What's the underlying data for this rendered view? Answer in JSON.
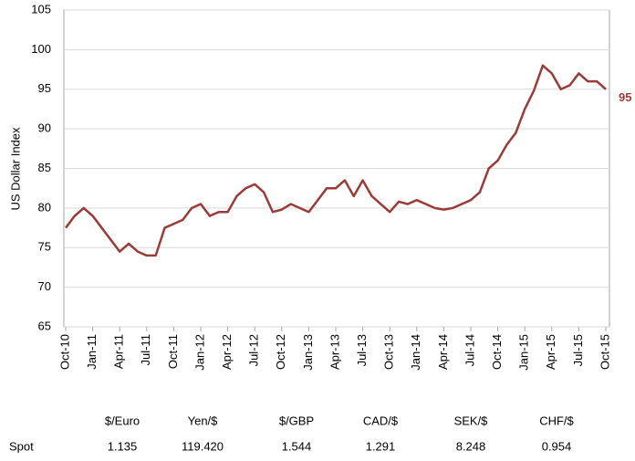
{
  "chart_data": {
    "type": "line",
    "y_label": "US Dollar Index",
    "x": [
      "Oct-10",
      "Nov-10",
      "Dec-10",
      "Jan-11",
      "Feb-11",
      "Mar-11",
      "Apr-11",
      "May-11",
      "Jun-11",
      "Jul-11",
      "Aug-11",
      "Sep-11",
      "Oct-11",
      "Nov-11",
      "Dec-11",
      "Jan-12",
      "Feb-12",
      "Mar-12",
      "Apr-12",
      "May-12",
      "Jun-12",
      "Jul-12",
      "Aug-12",
      "Sep-12",
      "Oct-12",
      "Nov-12",
      "Dec-12",
      "Jan-13",
      "Feb-13",
      "Mar-13",
      "Apr-13",
      "May-13",
      "Jun-13",
      "Jul-13",
      "Aug-13",
      "Sep-13",
      "Oct-13",
      "Nov-13",
      "Dec-13",
      "Jan-14",
      "Feb-14",
      "Mar-14",
      "Apr-14",
      "May-14",
      "Jun-14",
      "Jul-14",
      "Aug-14",
      "Sep-14",
      "Oct-14",
      "Nov-14",
      "Dec-14",
      "Jan-15",
      "Feb-15",
      "Mar-15",
      "Apr-15",
      "May-15",
      "Jun-15",
      "Jul-15",
      "Aug-15",
      "Sep-15",
      "Oct-15"
    ],
    "series": [
      {
        "color": "#9b3b38",
        "values": [
          77.5,
          79,
          80,
          79,
          77.5,
          76,
          74.5,
          75.5,
          74.5,
          74,
          74,
          77.5,
          78,
          78.5,
          80,
          80.5,
          79,
          79.5,
          79.5,
          81.5,
          82.5,
          83,
          82,
          79.5,
          79.8,
          80.5,
          80,
          79.5,
          81,
          82.5,
          82.5,
          83.5,
          81.5,
          83.5,
          81.5,
          80.5,
          79.5,
          80.8,
          80.5,
          81,
          80.5,
          80,
          79.8,
          80,
          80.5,
          81,
          82,
          85,
          86,
          88,
          89.5,
          92.5,
          94.8,
          98,
          97,
          95,
          95.5,
          97,
          96,
          96,
          95
        ]
      }
    ],
    "end_label": "95",
    "xticks": [
      "Oct-10",
      "Jan-11",
      "Apr-11",
      "Jul-11",
      "Oct-11",
      "Jan-12",
      "Apr-12",
      "Jul-12",
      "Oct-12",
      "Jan-13",
      "Apr-13",
      "Jul-13",
      "Oct-13",
      "Jan-14",
      "Apr-14",
      "Jul-14",
      "Oct-14",
      "Jan-15",
      "Apr-15",
      "Jul-15",
      "Oct-15"
    ],
    "ylim": [
      65,
      105
    ],
    "yticks": [
      65,
      70,
      75,
      80,
      85,
      90,
      95,
      100,
      105
    ],
    "grid": true
  },
  "table": {
    "columns": [
      "$/Euro",
      "Yen/$",
      "$/GBP",
      "CAD/$",
      "SEK/$",
      "CHF/$"
    ],
    "row_label": "Spot",
    "values": [
      "1.135",
      "119.420",
      "1.544",
      "1.291",
      "8.248",
      "0.954"
    ]
  }
}
